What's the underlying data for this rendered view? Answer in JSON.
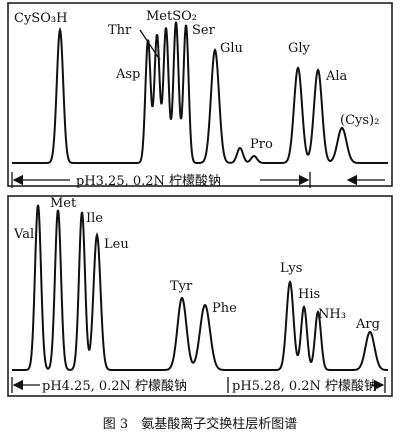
{
  "top_panel": {
    "peaks": [
      "CySO₃H",
      "Thr",
      "MetSO₂",
      "Ser",
      "Asp",
      "Glu",
      "Gly",
      "Ala",
      "Pro",
      "(Cys)₂"
    ],
    "buffer": "pH3.25, 0.2N 柠檬酸钠"
  },
  "bottom_panel": {
    "peaks": [
      "Val",
      "Met",
      "Ile",
      "Leu",
      "Tyr",
      "Phe",
      "Lys",
      "His",
      "NH₃",
      "Arg"
    ],
    "buffers": [
      "pH4.25, 0.2N 柠檬酸钠",
      "pH5.28, 0.2N 柠檬酸钠"
    ]
  },
  "caption": "图 3　氨基酸离子交换柱层析图谱"
}
